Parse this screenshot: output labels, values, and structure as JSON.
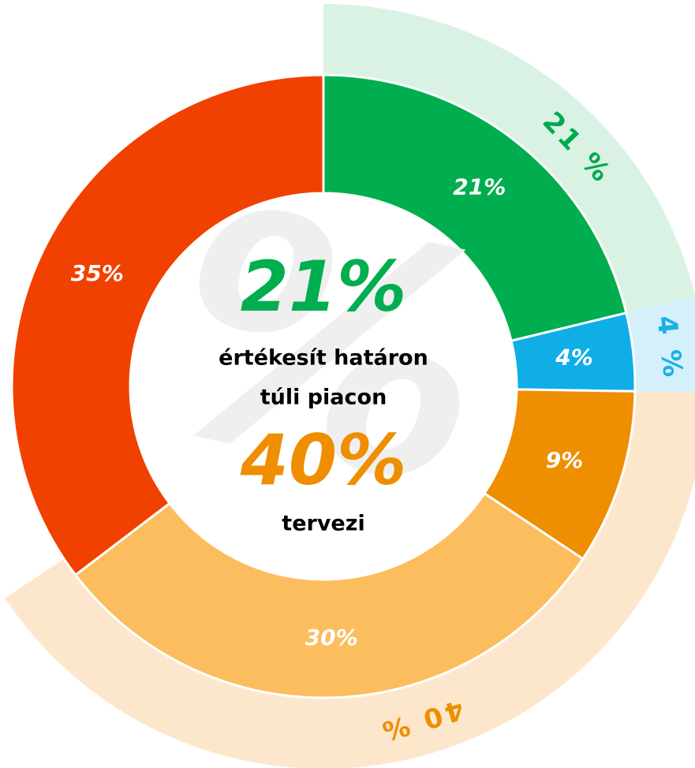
{
  "chart_data": {
    "type": "donut",
    "inner": {
      "values": [
        21,
        4,
        9,
        30,
        35
      ],
      "value_labels": [
        "21%",
        "4%",
        "9%",
        "30%",
        "35%"
      ],
      "colors": [
        "#00ae4f",
        "#10aee7",
        "#ee8e00",
        "#fbbd5e",
        "#f04100"
      ]
    },
    "outer": {
      "values": [
        21,
        4,
        40
      ],
      "value_labels": [
        "21 %",
        "4 %",
        "40 %"
      ],
      "colors": [
        "#d9f2e4",
        "#d3f0fb",
        "#fde7cc"
      ],
      "label_colors": [
        "#00a94f",
        "#1ab0e8",
        "#ee8f00"
      ]
    },
    "center": {
      "watermark": "%",
      "headline1": "21%",
      "text1": [
        "értékesít határon",
        "túli piacon"
      ],
      "headline2": "40%",
      "text2": "tervezi"
    }
  }
}
